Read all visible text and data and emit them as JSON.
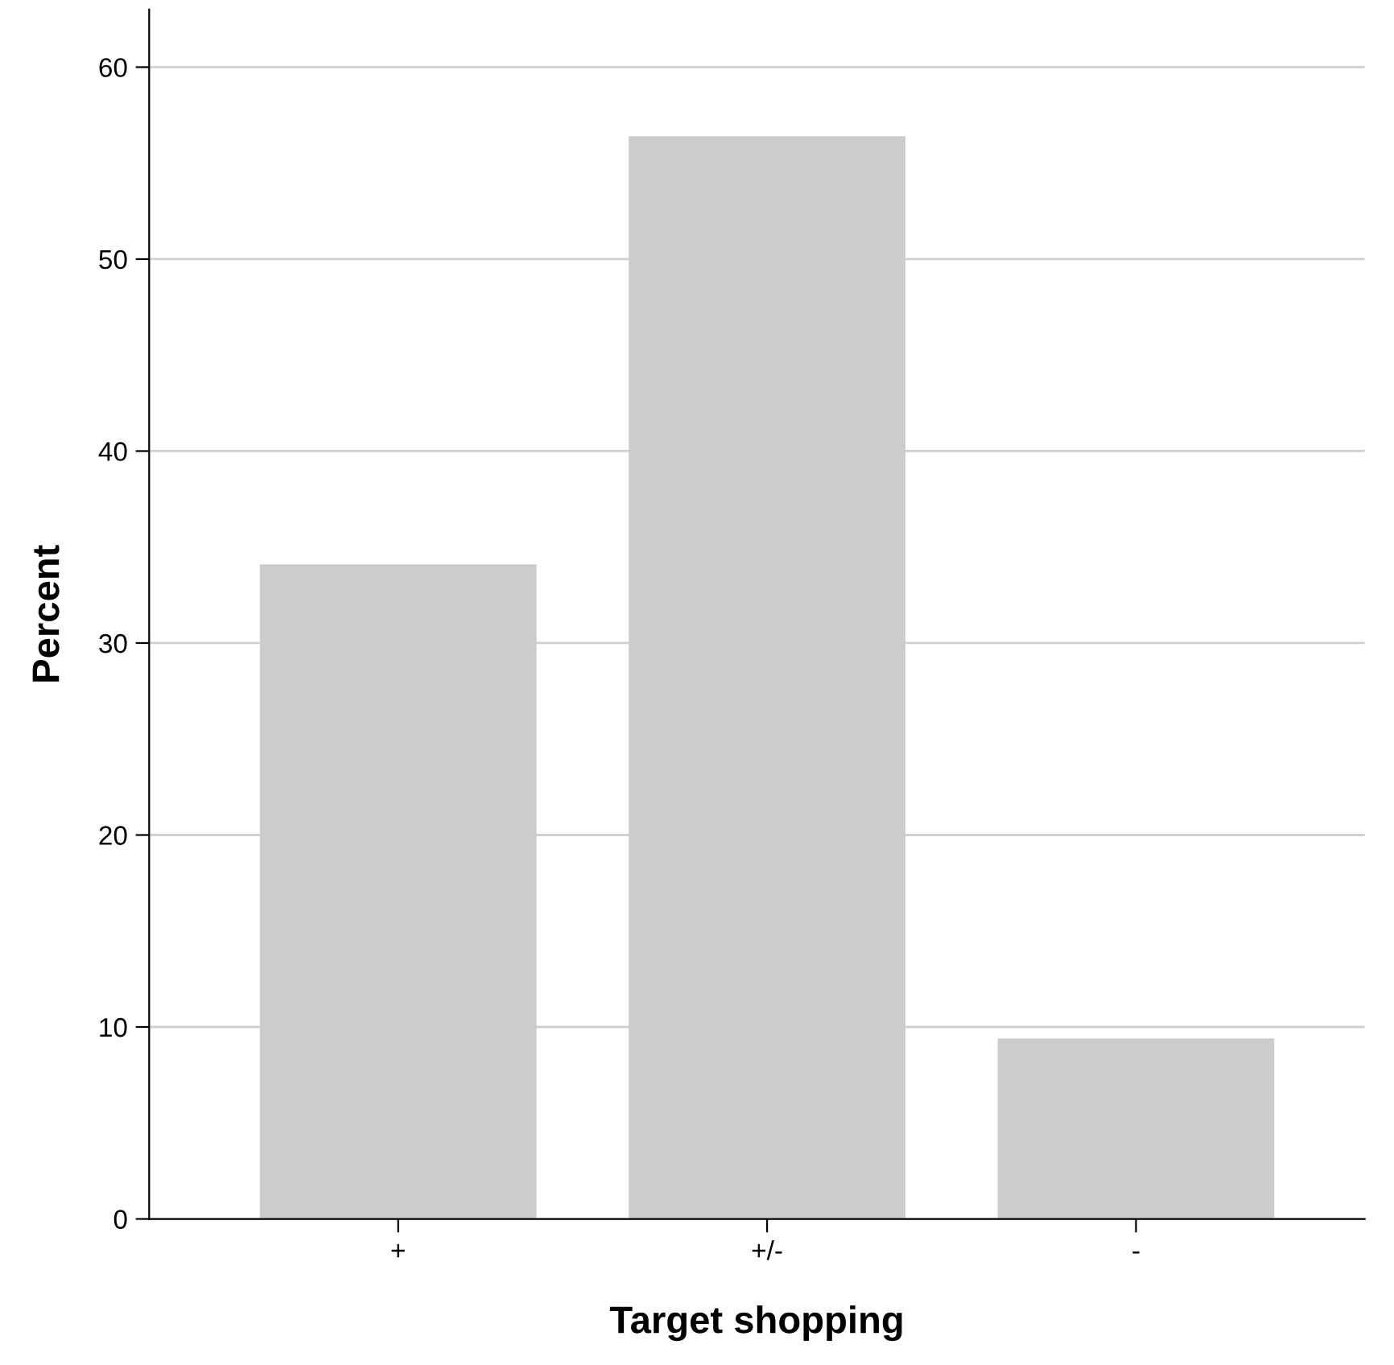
{
  "chart_data": {
    "type": "bar",
    "xlabel": "Target shopping",
    "ylabel": "Percent",
    "categories": [
      "+",
      "+/-",
      "-"
    ],
    "values": [
      34.1,
      56.4,
      9.4
    ],
    "color": "#cccccc",
    "ylim": [
      0,
      63
    ],
    "yticks": [
      0,
      10,
      20,
      30,
      40,
      50,
      60
    ],
    "grid": "y"
  }
}
